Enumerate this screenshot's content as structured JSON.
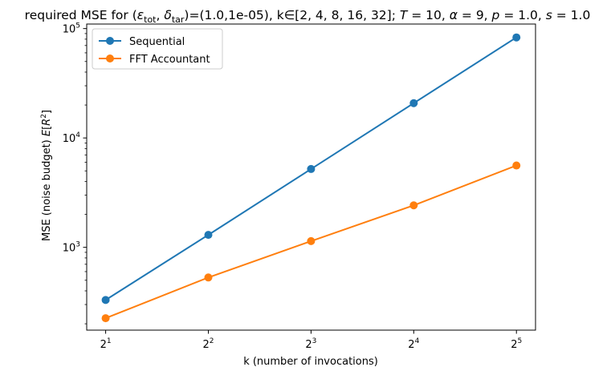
{
  "chart_data": {
    "type": "line",
    "title": {
      "prefix": "required MSE for (",
      "eps_sym": "ε",
      "eps_sub": "tot",
      "delta_sym": "δ",
      "delta_sub": "tar",
      "mid": ")=(1.0,1e-05), k∈[2, 4, 8, 16, 32]; ",
      "T_sym": "T",
      "T_val": " = 10, ",
      "alpha_sym": "α",
      "alpha_val": " = 9, ",
      "p_sym": "p",
      "p_val": " = 1.0, ",
      "s_sym": "s",
      "s_val": " = 1.0"
    },
    "xlabel": "k (number of invocations)",
    "ylabel": {
      "text": "MSE (noise budget) ",
      "sym": "E",
      "open": "[",
      "r": "R",
      "sup": "2",
      "close": "]"
    },
    "x_scale": "log2",
    "y_scale": "log10",
    "x": [
      2,
      4,
      8,
      16,
      32
    ],
    "xlim": [
      1.76,
      36.4
    ],
    "ylim": [
      175,
      110000
    ],
    "x_ticks": [
      {
        "value": 2,
        "base": "2",
        "exp": "1"
      },
      {
        "value": 4,
        "base": "2",
        "exp": "2"
      },
      {
        "value": 8,
        "base": "2",
        "exp": "3"
      },
      {
        "value": 16,
        "base": "2",
        "exp": "4"
      },
      {
        "value": 32,
        "base": "2",
        "exp": "5"
      }
    ],
    "y_ticks": [
      {
        "value": 1000,
        "base": "10",
        "exp": "3"
      },
      {
        "value": 10000,
        "base": "10",
        "exp": "4"
      },
      {
        "value": 100000,
        "base": "10",
        "exp": "5"
      }
    ],
    "grid": false,
    "legend_position": "upper-left",
    "series": [
      {
        "name": "Sequential",
        "color": "#1f77b4",
        "values": [
          330,
          1300,
          5200,
          20800,
          83000
        ]
      },
      {
        "name": "FFT Accountant",
        "color": "#ff7f0e",
        "values": [
          225,
          530,
          1140,
          2420,
          5600
        ]
      }
    ]
  }
}
